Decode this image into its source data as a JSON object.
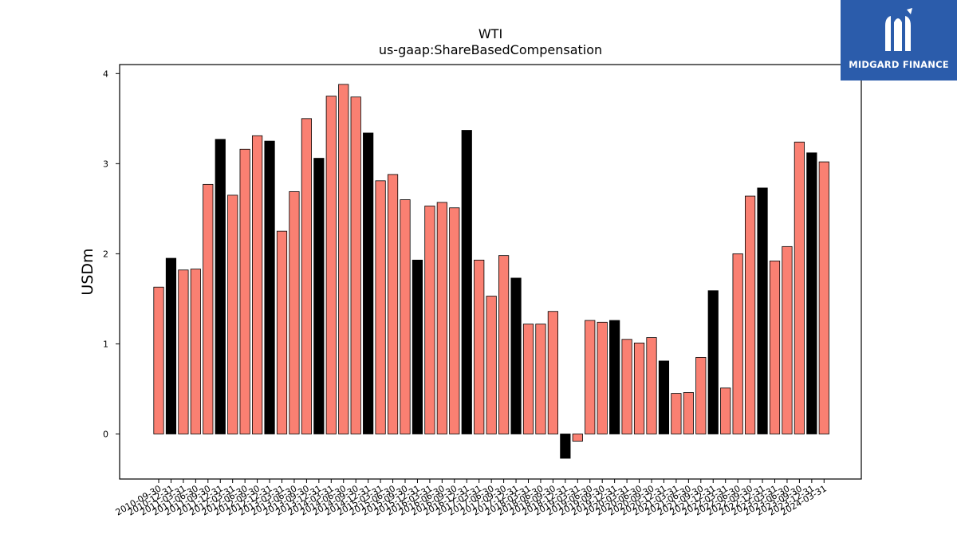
{
  "brand": {
    "name": "MIDGARD FINANCE",
    "logo_icon": "midgard-mi-logo-icon",
    "bg_color": "#2b5cab"
  },
  "chart_data": {
    "type": "bar",
    "title": "WTI",
    "subtitle": "us-gaap:ShareBasedCompensation",
    "xlabel": "",
    "ylabel": "USDm",
    "ylim": [
      -0.5,
      4.1
    ],
    "yticks": [
      0,
      1,
      2,
      3,
      4
    ],
    "colors": {
      "quarterly": "#fa8072",
      "annual": "#000000",
      "edge": "#000000"
    },
    "categories": [
      "2010-09-30",
      "2010-12-31",
      "2011-03-31",
      "2011-06-30",
      "2011-09-30",
      "2011-12-31",
      "2012-03-31",
      "2012-06-30",
      "2012-09-30",
      "2012-12-31",
      "2013-03-31",
      "2013-06-30",
      "2013-09-30",
      "2013-12-31",
      "2014-03-31",
      "2014-06-30",
      "2014-09-30",
      "2014-12-31",
      "2015-03-31",
      "2015-06-30",
      "2015-09-30",
      "2015-12-31",
      "2016-03-31",
      "2016-06-30",
      "2016-09-30",
      "2016-12-31",
      "2017-03-31",
      "2017-06-30",
      "2017-09-30",
      "2017-12-31",
      "2018-03-31",
      "2018-06-30",
      "2018-09-30",
      "2018-12-31",
      "2019-03-31",
      "2019-06-30",
      "2019-09-30",
      "2019-12-31",
      "2020-03-31",
      "2020-06-30",
      "2020-09-30",
      "2020-12-31",
      "2021-03-31",
      "2021-06-30",
      "2021-09-30",
      "2021-12-31",
      "2022-03-31",
      "2022-06-30",
      "2022-09-30",
      "2022-12-31",
      "2023-03-31",
      "2023-06-30",
      "2023-09-30",
      "2023-12-31",
      "2024-03-31"
    ],
    "values": [
      1.63,
      1.95,
      1.82,
      1.83,
      2.77,
      3.27,
      2.65,
      3.16,
      3.31,
      3.25,
      2.25,
      2.69,
      3.5,
      3.06,
      3.75,
      3.88,
      3.74,
      3.34,
      2.81,
      2.88,
      2.6,
      1.93,
      2.53,
      2.57,
      2.51,
      3.37,
      1.93,
      1.53,
      1.98,
      1.73,
      1.22,
      1.22,
      1.36,
      -0.27,
      -0.08,
      1.26,
      1.24,
      1.26,
      1.05,
      1.01,
      1.07,
      0.81,
      0.45,
      0.46,
      0.85,
      1.59,
      0.51,
      2.0,
      2.64,
      2.73,
      1.92,
      2.08,
      3.24,
      3.12,
      3.02
    ],
    "highlight": [
      false,
      true,
      false,
      false,
      false,
      true,
      false,
      false,
      false,
      true,
      false,
      false,
      false,
      true,
      false,
      false,
      false,
      true,
      false,
      false,
      false,
      true,
      false,
      false,
      false,
      true,
      false,
      false,
      false,
      true,
      false,
      false,
      false,
      true,
      false,
      false,
      false,
      true,
      false,
      false,
      false,
      true,
      false,
      false,
      false,
      true,
      false,
      false,
      false,
      true,
      false,
      false,
      false,
      true,
      false
    ]
  }
}
